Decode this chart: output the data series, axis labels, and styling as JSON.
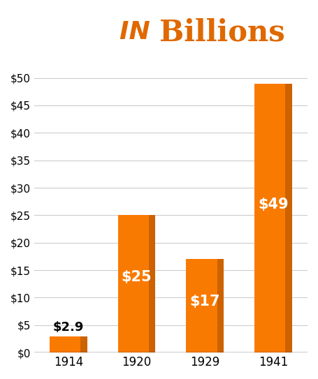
{
  "categories": [
    "1914",
    "1920",
    "1929",
    "1941"
  ],
  "values": [
    2.9,
    25,
    17,
    49
  ],
  "labels": [
    "$2.9",
    "$25",
    "$17",
    "$49"
  ],
  "bar_color": "#F97A00",
  "bar_color_dark": "#CC6200",
  "title_color": "#E06800",
  "ylim": [
    0,
    54
  ],
  "yticks": [
    0,
    5,
    10,
    15,
    20,
    25,
    30,
    35,
    40,
    45,
    50
  ],
  "background_color": "#ffffff",
  "grid_color": "#cccccc",
  "bar_width": 0.55,
  "label_fontsize_inside": 15,
  "label_fontsize_outside": 13,
  "tick_fontsize": 11
}
